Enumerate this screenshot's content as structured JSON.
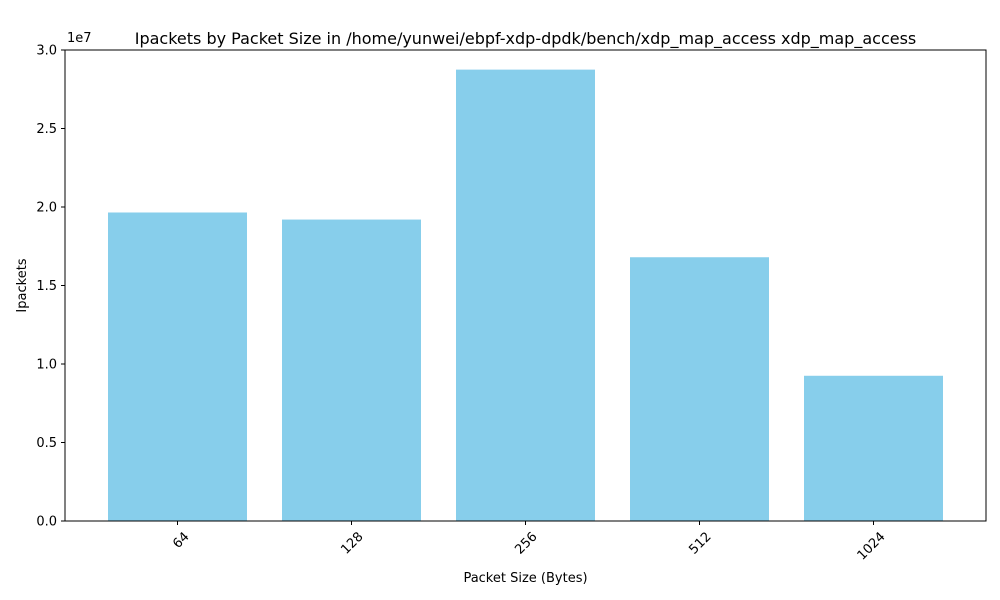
{
  "chart_data": {
    "type": "bar",
    "title": "Ipackets by Packet Size in /home/yunwei/ebpf-xdp-dpdk/bench/xdp_map_access xdp_map_access",
    "xlabel": "Packet Size (Bytes)",
    "ylabel": "Ipackets",
    "categories": [
      "64",
      "128",
      "256",
      "512",
      "1024"
    ],
    "values": [
      19650000,
      19200000,
      28750000,
      16800000,
      9250000
    ],
    "ylim": [
      0,
      30000000
    ],
    "y_ticks": [
      0,
      5000000,
      10000000,
      15000000,
      20000000,
      25000000,
      30000000
    ],
    "y_tick_labels": [
      "0.0",
      "0.5",
      "1.0",
      "1.5",
      "2.0",
      "2.5",
      "3.0"
    ],
    "y_offset_label": "1e7",
    "x_tick_rotation": 45,
    "bar_color": "#87ceeb",
    "grid": false,
    "legend": "none"
  }
}
